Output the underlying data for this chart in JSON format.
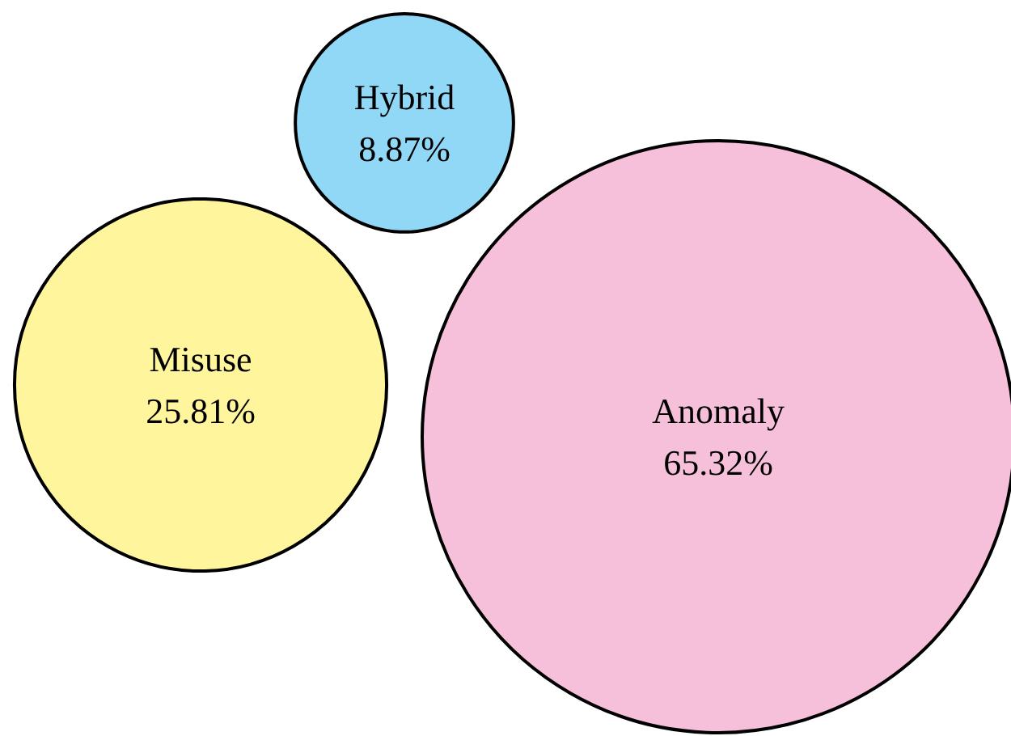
{
  "chart_data": {
    "type": "other",
    "categories": [
      "Misuse",
      "Hybrid",
      "Anomaly"
    ],
    "values": [
      25.81,
      8.87,
      65.32
    ],
    "value_labels": [
      "25.81%",
      "8.87%",
      "65.32%"
    ],
    "colors": [
      "#fff59d",
      "#91d8f7",
      "#f7c0da"
    ]
  }
}
